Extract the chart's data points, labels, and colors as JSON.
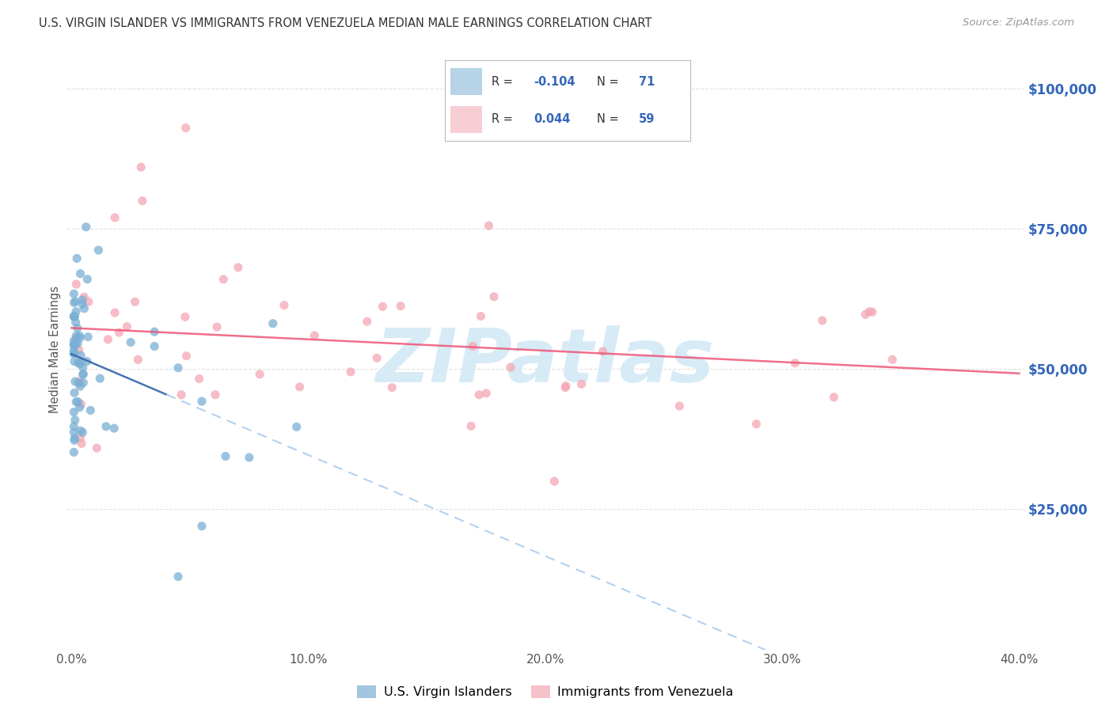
{
  "title": "U.S. VIRGIN ISLANDER VS IMMIGRANTS FROM VENEZUELA MEDIAN MALE EARNINGS CORRELATION CHART",
  "source": "Source: ZipAtlas.com",
  "xlabel_blue": "U.S. Virgin Islanders",
  "xlabel_pink": "Immigrants from Venezuela",
  "ylabel": "Median Male Earnings",
  "xlim": [
    -0.002,
    0.402
  ],
  "ylim": [
    0,
    107000
  ],
  "yticks": [
    0,
    25000,
    50000,
    75000,
    100000
  ],
  "ytick_labels": [
    "",
    "$25,000",
    "$50,000",
    "$75,000",
    "$100,000"
  ],
  "xticks": [
    0.0,
    0.1,
    0.2,
    0.3,
    0.4
  ],
  "xtick_labels": [
    "0.0%",
    "10.0%",
    "20.0%",
    "30.0%",
    "40.0%"
  ],
  "blue_color": "#7BAFD4",
  "pink_color": "#F4A7B4",
  "blue_line_solid_color": "#3366AA",
  "blue_line_dash_color": "#AACCEE",
  "pink_line_color": "#EE5577",
  "watermark_color": "#D0E8F5",
  "background_color": "#FFFFFF",
  "grid_color": "#E0E0E0",
  "right_tick_color": "#3366BB",
  "title_color": "#333333",
  "source_color": "#999999"
}
